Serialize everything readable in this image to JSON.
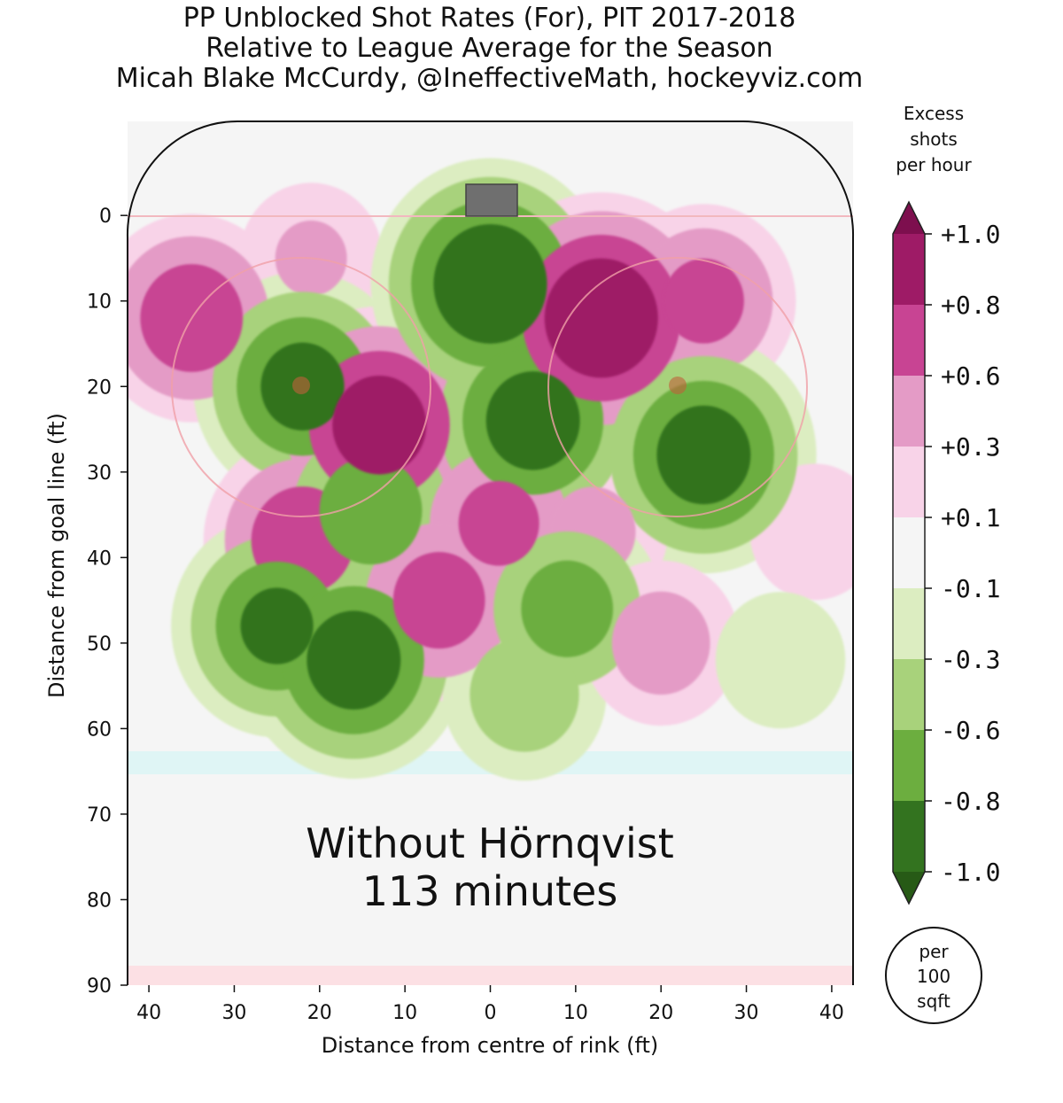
{
  "title": {
    "line1": "PP Unblocked Shot Rates (For), PIT 2017-2018",
    "line2": "Relative to League Average for the Season",
    "line3": "Micah Blake McCurdy, @IneffectiveMath, hockeyviz.com"
  },
  "chart_data": {
    "type": "heatmap",
    "xlabel": "Distance from centre of rink (ft)",
    "ylabel": "Distance from goal line (ft)",
    "xlim": [
      -42.5,
      42.5
    ],
    "ylim": [
      -11,
      90
    ],
    "x_ticks": [
      -40,
      -30,
      -20,
      -10,
      0,
      10,
      20,
      30,
      40
    ],
    "x_tick_labels": [
      "40",
      "30",
      "20",
      "10",
      "0",
      "10",
      "20",
      "30",
      "40"
    ],
    "y_ticks": [
      0,
      10,
      20,
      30,
      40,
      50,
      60,
      70,
      80,
      90
    ],
    "y_tick_labels": [
      "0",
      "10",
      "20",
      "30",
      "40",
      "50",
      "60",
      "70",
      "80",
      "90"
    ],
    "annotation": {
      "line1": "Without Hörnqvist",
      "line2": "113 minutes"
    },
    "colorbar": {
      "title_lines": [
        "Excess",
        "shots",
        "per hour"
      ],
      "tick_labels": [
        "+1.0",
        "+0.8",
        "+0.6",
        "+0.3",
        "+0.1",
        "-0.1",
        "-0.3",
        "-0.6",
        "-0.8",
        "-1.0"
      ],
      "level_colors": [
        "#9e1b66",
        "#c84493",
        "#e49bc6",
        "#f8d3e8",
        "#f5f5f5",
        "#dcedc1",
        "#a8d27b",
        "#6cae3f",
        "#33731f"
      ],
      "extend_top_color": "#7d0f4e",
      "extend_bottom_color": "#275a16",
      "unit_lines": [
        "per",
        "100",
        "sqft"
      ]
    },
    "blobs": [
      {
        "x": -35,
        "y": 12,
        "value": 0.7
      },
      {
        "x": -21,
        "y": 5,
        "value": 0.3
      },
      {
        "x": -22,
        "y": 20,
        "value": -0.85
      },
      {
        "x": -13,
        "y": 24.5,
        "value": 0.9
      },
      {
        "x": -22,
        "y": 38,
        "value": 0.7
      },
      {
        "x": -14,
        "y": 34.5,
        "value": -0.7
      },
      {
        "x": -25,
        "y": 48,
        "value": -0.8
      },
      {
        "x": -16,
        "y": 52,
        "value": -0.9
      },
      {
        "x": 0,
        "y": 8,
        "value": -1.0
      },
      {
        "x": 5,
        "y": 24,
        "value": -0.9
      },
      {
        "x": 13,
        "y": 12,
        "value": 1.0
      },
      {
        "x": 25,
        "y": 10,
        "value": 0.6
      },
      {
        "x": 25,
        "y": 28,
        "value": -0.9
      },
      {
        "x": 1,
        "y": 36,
        "value": 0.6
      },
      {
        "x": -6,
        "y": 45,
        "value": 0.65
      },
      {
        "x": 12,
        "y": 37,
        "value": 0.35
      },
      {
        "x": 9,
        "y": 46,
        "value": -0.65
      },
      {
        "x": 4,
        "y": 56,
        "value": -0.45
      },
      {
        "x": 20,
        "y": 50,
        "value": 0.4
      },
      {
        "x": 38,
        "y": 37,
        "value": 0.2
      },
      {
        "x": 34,
        "y": 52,
        "value": -0.2
      }
    ]
  }
}
